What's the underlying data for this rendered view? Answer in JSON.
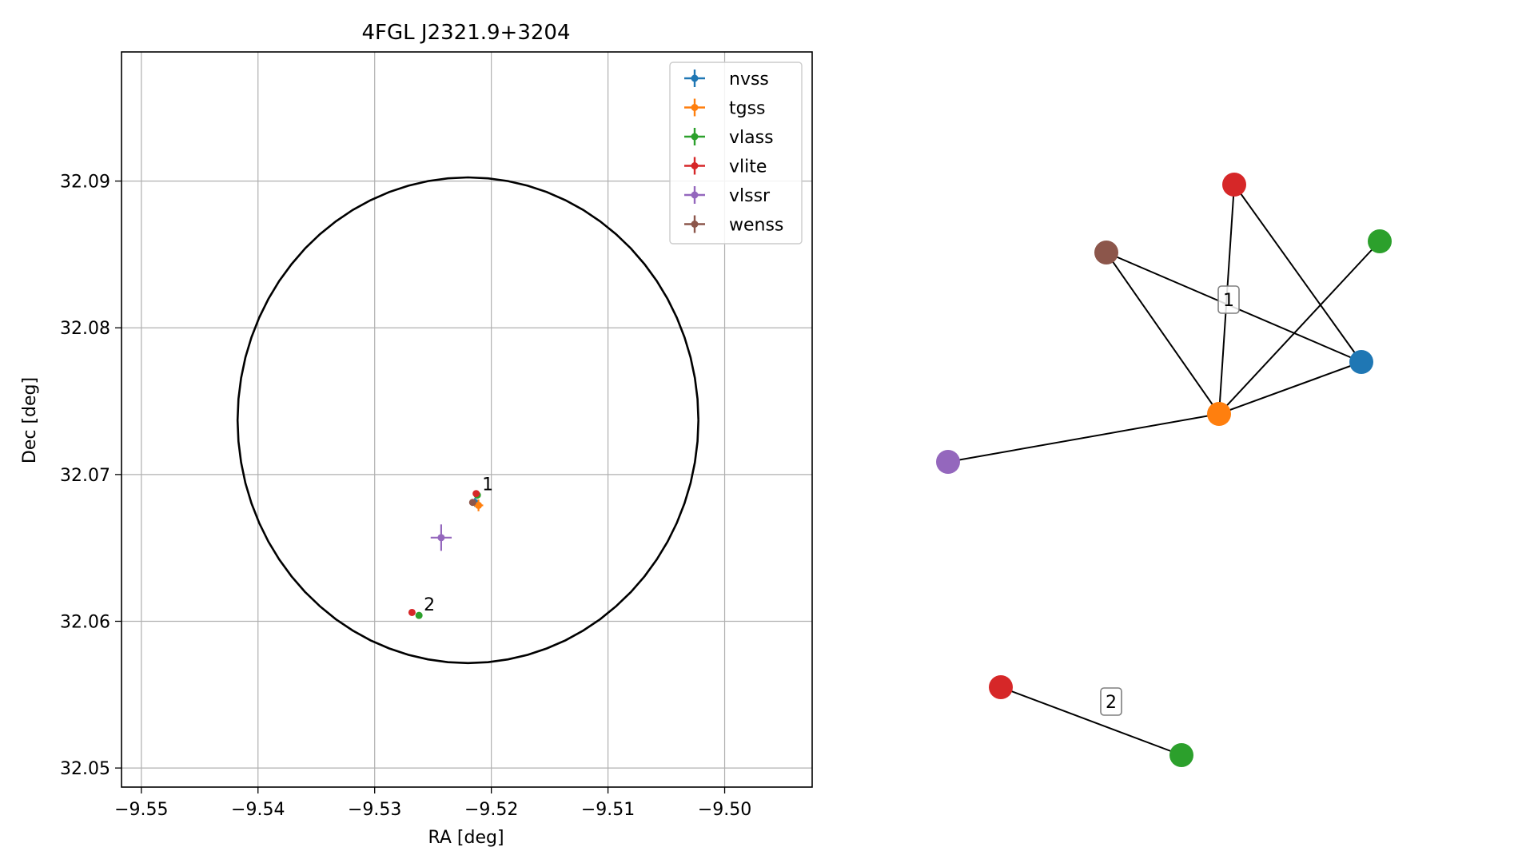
{
  "chart_data": [
    {
      "type": "scatter",
      "title": "4FGL J2321.9+3204",
      "xlabel": "RA [deg]",
      "ylabel": "Dec [deg]",
      "xlim": [
        -9.5517,
        -9.4925
      ],
      "ylim": [
        32.0487,
        32.0988
      ],
      "xticks": [
        -9.55,
        -9.54,
        -9.53,
        -9.52,
        -9.51,
        -9.5
      ],
      "xtick_labels": [
        "−9.55",
        "−9.54",
        "−9.53",
        "−9.52",
        "−9.51",
        "−9.50"
      ],
      "yticks": [
        32.05,
        32.06,
        32.07,
        32.08,
        32.09
      ],
      "ytick_labels": [
        "32.05",
        "32.06",
        "32.07",
        "32.08",
        "32.09"
      ],
      "grid": true,
      "legend_position": "top-right",
      "error_circle": {
        "center_ra": -9.522,
        "center_dec": 32.0737,
        "radius_ra": 0.01975,
        "radius_dec": 0.01655
      },
      "series": [
        {
          "name": "nvss",
          "color": "#1f77b4",
          "points": [
            {
              "x": -9.5214,
              "y": 32.0681,
              "xerr": 0.0003,
              "yerr": 0.0003
            }
          ]
        },
        {
          "name": "tgss",
          "color": "#ff7f0e",
          "points": [
            {
              "x": -9.5211,
              "y": 32.0679,
              "xerr": 0.0004,
              "yerr": 0.0004
            }
          ]
        },
        {
          "name": "vlass",
          "color": "#2ca02c",
          "points": [
            {
              "x": -9.5212,
              "y": 32.0686,
              "xerr": 0.0001,
              "yerr": 0.0001
            },
            {
              "x": -9.5262,
              "y": 32.0604,
              "xerr": 0.0001,
              "yerr": 0.0001
            }
          ]
        },
        {
          "name": "vlite",
          "color": "#d62728",
          "points": [
            {
              "x": -9.5213,
              "y": 32.0687,
              "xerr": 0.0002,
              "yerr": 0.0002
            },
            {
              "x": -9.5268,
              "y": 32.0606,
              "xerr": 0.0002,
              "yerr": 0.0002
            }
          ]
        },
        {
          "name": "vlssr",
          "color": "#9467bd",
          "points": [
            {
              "x": -9.5243,
              "y": 32.0657,
              "xerr": 0.0009,
              "yerr": 0.0009
            }
          ]
        },
        {
          "name": "wenss",
          "color": "#8c564b",
          "points": [
            {
              "x": -9.5216,
              "y": 32.0681,
              "xerr": 0.0002,
              "yerr": 0.0002
            }
          ]
        }
      ],
      "annotations": [
        {
          "text": "1",
          "x": -9.5212,
          "y": 32.0686
        },
        {
          "text": "2",
          "x": -9.5262,
          "y": 32.0604
        }
      ]
    },
    {
      "type": "network",
      "groups": [
        {
          "label": "1",
          "nodes": [
            {
              "id": "vlite",
              "color": "#d62728"
            },
            {
              "id": "vlass",
              "color": "#2ca02c"
            },
            {
              "id": "wenss",
              "color": "#8c564b"
            },
            {
              "id": "nvss",
              "color": "#1f77b4"
            },
            {
              "id": "tgss",
              "color": "#ff7f0e"
            },
            {
              "id": "vlssr",
              "color": "#9467bd"
            }
          ],
          "edges": [
            [
              "wenss",
              "nvss"
            ],
            [
              "wenss",
              "tgss"
            ],
            [
              "vlite",
              "nvss"
            ],
            [
              "vlite",
              "tgss"
            ],
            [
              "vlass",
              "tgss"
            ],
            [
              "nvss",
              "tgss"
            ],
            [
              "vlssr",
              "tgss"
            ]
          ]
        },
        {
          "label": "2",
          "nodes": [
            {
              "id": "vlite",
              "color": "#d62728"
            },
            {
              "id": "vlass",
              "color": "#2ca02c"
            }
          ],
          "edges": [
            [
              "vlite",
              "vlass"
            ]
          ]
        }
      ]
    }
  ]
}
